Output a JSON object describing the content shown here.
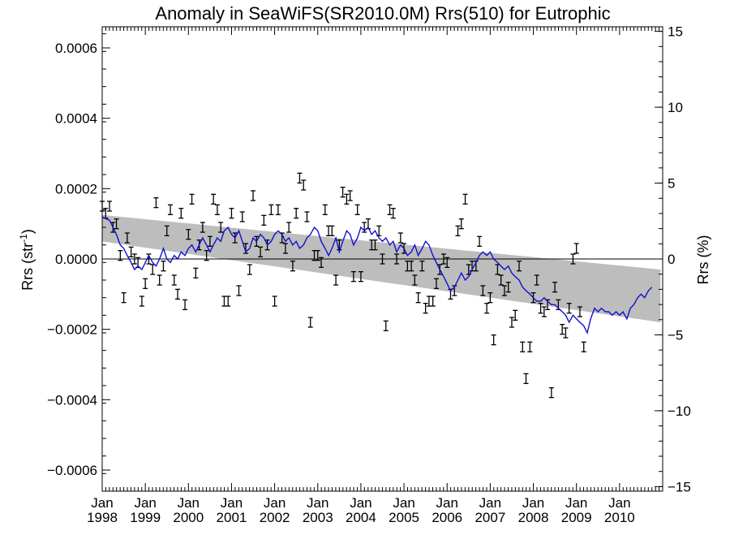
{
  "chart_data": {
    "type": "scatter",
    "title": "Anomaly in SeaWiFS(SR2010.0M) Rrs(510) for Eutrophic",
    "ylabel_left_main": "Rrs (str",
    "ylabel_left_sup": "-1",
    "ylabel_left_end": ")",
    "ylabel_right": "Rrs (%)",
    "x_range": [
      "1998-01",
      "2010-12"
    ],
    "ylim_left": [
      -0.00066,
      0.00066
    ],
    "ylim_right": [
      -15.3,
      15.3
    ],
    "left_ticks": [
      {
        "value": 0.0006,
        "label": "0.0006"
      },
      {
        "value": 0.0004,
        "label": "0.0004"
      },
      {
        "value": 0.0002,
        "label": "0.0002"
      },
      {
        "value": 0.0,
        "label": "0.0000"
      },
      {
        "value": -0.0002,
        "label": "−0.0002"
      },
      {
        "value": -0.0004,
        "label": "−0.0004"
      },
      {
        "value": -0.0006,
        "label": "−0.0006"
      }
    ],
    "right_ticks": [
      {
        "value": 15,
        "label": "15"
      },
      {
        "value": 10,
        "label": "10"
      },
      {
        "value": 5,
        "label": "5"
      },
      {
        "value": 0,
        "label": "0"
      },
      {
        "value": -5,
        "label": "−5"
      },
      {
        "value": -10,
        "label": "−10"
      },
      {
        "value": -15,
        "label": "−15"
      }
    ],
    "x_ticks": [
      {
        "month": "Jan",
        "year": "1998",
        "t": 0
      },
      {
        "month": "Jan",
        "year": "1999",
        "t": 1
      },
      {
        "month": "Jan",
        "year": "2000",
        "t": 2
      },
      {
        "month": "Jan",
        "year": "2001",
        "t": 3
      },
      {
        "month": "Jan",
        "year": "2002",
        "t": 4
      },
      {
        "month": "Jan",
        "year": "2003",
        "t": 5
      },
      {
        "month": "Jan",
        "year": "2004",
        "t": 6
      },
      {
        "month": "Jan",
        "year": "2005",
        "t": 7
      },
      {
        "month": "Jan",
        "year": "2006",
        "t": 8
      },
      {
        "month": "Jan",
        "year": "2007",
        "t": 9
      },
      {
        "month": "Jan",
        "year": "2008",
        "t": 10
      },
      {
        "month": "Jan",
        "year": "2009",
        "t": 11
      },
      {
        "month": "Jan",
        "year": "2010",
        "t": 12
      }
    ],
    "trend_band": {
      "upper": [
        [
          1998.0,
          0.000125
        ],
        [
          2010.95,
          -3e-05
        ]
      ],
      "lower": [
        [
          1998.0,
          5e-05
        ],
        [
          2010.95,
          -0.00018
        ]
      ]
    },
    "running_mean": [
      [
        1998.0,
        0.00012
      ],
      [
        1998.08,
        0.000115
      ],
      [
        1998.17,
        0.00011
      ],
      [
        1998.25,
        9e-05
      ],
      [
        1998.33,
        7e-05
      ],
      [
        1998.42,
        4e-05
      ],
      [
        1998.5,
        3e-05
      ],
      [
        1998.58,
        1e-05
      ],
      [
        1998.67,
        -1e-05
      ],
      [
        1998.75,
        -3e-05
      ],
      [
        1998.83,
        -2e-05
      ],
      [
        1998.92,
        -3e-05
      ],
      [
        1999.0,
        -1e-05
      ],
      [
        1999.08,
        1e-05
      ],
      [
        1999.17,
        -1e-05
      ],
      [
        1999.25,
        -2e-05
      ],
      [
        1999.33,
        0.0
      ],
      [
        1999.42,
        3e-05
      ],
      [
        1999.5,
        0.0
      ],
      [
        1999.58,
        -1e-05
      ],
      [
        1999.67,
        1e-05
      ],
      [
        1999.75,
        0.0
      ],
      [
        1999.83,
        2e-05
      ],
      [
        1999.92,
        1e-05
      ],
      [
        2000.0,
        3e-05
      ],
      [
        2000.08,
        4e-05
      ],
      [
        2000.17,
        2e-05
      ],
      [
        2000.25,
        4e-05
      ],
      [
        2000.33,
        6e-05
      ],
      [
        2000.42,
        4e-05
      ],
      [
        2000.5,
        2e-05
      ],
      [
        2000.58,
        4e-05
      ],
      [
        2000.67,
        6e-05
      ],
      [
        2000.75,
        5e-05
      ],
      [
        2000.83,
        8e-05
      ],
      [
        2000.92,
        9e-05
      ],
      [
        2001.0,
        7e-05
      ],
      [
        2001.08,
        6e-05
      ],
      [
        2001.17,
        8e-05
      ],
      [
        2001.25,
        5e-05
      ],
      [
        2001.33,
        2e-05
      ],
      [
        2001.42,
        3e-05
      ],
      [
        2001.5,
        6e-05
      ],
      [
        2001.58,
        5e-05
      ],
      [
        2001.67,
        7e-05
      ],
      [
        2001.75,
        6e-05
      ],
      [
        2001.83,
        4e-05
      ],
      [
        2001.92,
        5e-05
      ],
      [
        2002.0,
        7e-05
      ],
      [
        2002.08,
        8e-05
      ],
      [
        2002.17,
        7e-05
      ],
      [
        2002.25,
        5e-05
      ],
      [
        2002.33,
        6e-05
      ],
      [
        2002.42,
        4e-05
      ],
      [
        2002.5,
        5e-05
      ],
      [
        2002.58,
        3e-05
      ],
      [
        2002.67,
        4e-05
      ],
      [
        2002.75,
        6e-05
      ],
      [
        2002.83,
        7e-05
      ],
      [
        2002.92,
        9e-05
      ],
      [
        2003.0,
        8e-05
      ],
      [
        2003.08,
        5e-05
      ],
      [
        2003.17,
        3e-05
      ],
      [
        2003.25,
        1e-05
      ],
      [
        2003.33,
        3e-05
      ],
      [
        2003.42,
        6e-05
      ],
      [
        2003.5,
        2e-05
      ],
      [
        2003.58,
        5e-05
      ],
      [
        2003.67,
        8e-05
      ],
      [
        2003.75,
        7e-05
      ],
      [
        2003.83,
        4e-05
      ],
      [
        2003.92,
        6e-05
      ],
      [
        2004.0,
        9e-05
      ],
      [
        2004.08,
        8e-05
      ],
      [
        2004.17,
        9e-05
      ],
      [
        2004.25,
        7e-05
      ],
      [
        2004.33,
        8e-05
      ],
      [
        2004.42,
        6e-05
      ],
      [
        2004.5,
        5e-05
      ],
      [
        2004.58,
        6e-05
      ],
      [
        2004.67,
        4e-05
      ],
      [
        2004.75,
        5e-05
      ],
      [
        2004.83,
        2e-05
      ],
      [
        2004.92,
        4e-05
      ],
      [
        2005.0,
        3e-05
      ],
      [
        2005.08,
        1e-05
      ],
      [
        2005.17,
        2e-05
      ],
      [
        2005.25,
        4e-05
      ],
      [
        2005.33,
        1e-05
      ],
      [
        2005.42,
        3e-05
      ],
      [
        2005.5,
        5e-05
      ],
      [
        2005.58,
        4e-05
      ],
      [
        2005.67,
        1e-05
      ],
      [
        2005.75,
        -1e-05
      ],
      [
        2005.83,
        -3e-05
      ],
      [
        2005.92,
        -5e-05
      ],
      [
        2006.0,
        -7e-05
      ],
      [
        2006.08,
        -9e-05
      ],
      [
        2006.17,
        -8e-05
      ],
      [
        2006.25,
        -6e-05
      ],
      [
        2006.33,
        -4e-05
      ],
      [
        2006.42,
        -6e-05
      ],
      [
        2006.5,
        -5e-05
      ],
      [
        2006.58,
        -3e-05
      ],
      [
        2006.67,
        -1e-05
      ],
      [
        2006.75,
        1e-05
      ],
      [
        2006.83,
        2e-05
      ],
      [
        2006.92,
        1e-05
      ],
      [
        2007.0,
        2e-05
      ],
      [
        2007.08,
        0.0
      ],
      [
        2007.17,
        -1e-05
      ],
      [
        2007.25,
        -2e-05
      ],
      [
        2007.33,
        -3e-05
      ],
      [
        2007.42,
        -2e-05
      ],
      [
        2007.5,
        -4e-05
      ],
      [
        2007.58,
        -5e-05
      ],
      [
        2007.67,
        -6e-05
      ],
      [
        2007.75,
        -8e-05
      ],
      [
        2007.83,
        -9e-05
      ],
      [
        2007.92,
        -0.0001
      ],
      [
        2008.0,
        -0.00011
      ],
      [
        2008.08,
        -0.00012
      ],
      [
        2008.17,
        -0.00012
      ],
      [
        2008.25,
        -0.00011
      ],
      [
        2008.33,
        -0.00012
      ],
      [
        2008.42,
        -0.00013
      ],
      [
        2008.5,
        -0.00013
      ],
      [
        2008.58,
        -0.00014
      ],
      [
        2008.67,
        -0.00015
      ],
      [
        2008.75,
        -0.00016
      ],
      [
        2008.83,
        -0.00018
      ],
      [
        2008.92,
        -0.00016
      ],
      [
        2009.0,
        -0.00017
      ],
      [
        2009.08,
        -0.00018
      ],
      [
        2009.17,
        -0.00019
      ],
      [
        2009.25,
        -0.00021
      ],
      [
        2009.33,
        -0.00017
      ],
      [
        2009.42,
        -0.00014
      ],
      [
        2009.5,
        -0.00015
      ],
      [
        2009.58,
        -0.00014
      ],
      [
        2009.67,
        -0.00015
      ],
      [
        2009.75,
        -0.00015
      ],
      [
        2009.83,
        -0.00016
      ],
      [
        2009.92,
        -0.00015
      ],
      [
        2010.0,
        -0.00016
      ],
      [
        2010.08,
        -0.00015
      ],
      [
        2010.17,
        -0.00017
      ],
      [
        2010.25,
        -0.00014
      ],
      [
        2010.33,
        -0.00013
      ],
      [
        2010.42,
        -0.00011
      ],
      [
        2010.5,
        -0.0001
      ],
      [
        2010.58,
        -0.00011
      ],
      [
        2010.67,
        -9e-05
      ],
      [
        2010.75,
        -8e-05
      ]
    ],
    "monthly_points": [
      [
        1998.0,
        0.00015
      ],
      [
        1998.08,
        0.00013
      ],
      [
        1998.17,
        0.00015
      ],
      [
        1998.25,
        9e-05
      ],
      [
        1998.33,
        0.0001
      ],
      [
        1998.42,
        1e-05
      ],
      [
        1998.5,
        -0.00011
      ],
      [
        1998.58,
        6e-05
      ],
      [
        1998.67,
        2e-05
      ],
      [
        1998.75,
        0.0
      ],
      [
        1998.83,
        -1e-05
      ],
      [
        1998.92,
        -0.00012
      ],
      [
        1999.0,
        -7e-05
      ],
      [
        1999.08,
        0.0
      ],
      [
        1999.17,
        -3e-05
      ],
      [
        1999.25,
        0.00016
      ],
      [
        1999.33,
        -6e-05
      ],
      [
        1999.42,
        -2e-05
      ],
      [
        1999.5,
        8e-05
      ],
      [
        1999.58,
        0.00014
      ],
      [
        1999.67,
        -6e-05
      ],
      [
        1999.75,
        -0.0001
      ],
      [
        1999.83,
        0.00013
      ],
      [
        1999.92,
        -0.00013
      ],
      [
        2000.0,
        7e-05
      ],
      [
        2000.08,
        0.00017
      ],
      [
        2000.17,
        -4e-05
      ],
      [
        2000.25,
        4e-05
      ],
      [
        2000.33,
        9e-05
      ],
      [
        2000.42,
        1e-05
      ],
      [
        2000.5,
        5e-05
      ],
      [
        2000.58,
        0.00017
      ],
      [
        2000.67,
        0.00014
      ],
      [
        2000.75,
        9e-05
      ],
      [
        2000.83,
        -0.00012
      ],
      [
        2000.92,
        -0.00012
      ],
      [
        2001.0,
        0.00013
      ],
      [
        2001.08,
        6e-05
      ],
      [
        2001.17,
        -9e-05
      ],
      [
        2001.25,
        0.00012
      ],
      [
        2001.33,
        3e-05
      ],
      [
        2001.42,
        -3e-05
      ],
      [
        2001.5,
        0.00018
      ],
      [
        2001.58,
        5e-05
      ],
      [
        2001.67,
        2e-05
      ],
      [
        2001.75,
        0.00011
      ],
      [
        2001.83,
        4e-05
      ],
      [
        2001.92,
        0.00014
      ],
      [
        2002.0,
        -0.00012
      ],
      [
        2002.08,
        0.00014
      ],
      [
        2002.17,
        6e-05
      ],
      [
        2002.25,
        3e-05
      ],
      [
        2002.33,
        9e-05
      ],
      [
        2002.42,
        -2e-05
      ],
      [
        2002.5,
        0.00013
      ],
      [
        2002.58,
        0.00023
      ],
      [
        2002.67,
        0.00021
      ],
      [
        2002.75,
        0.00012
      ],
      [
        2002.83,
        -0.00018
      ],
      [
        2002.92,
        1e-05
      ],
      [
        2003.0,
        1e-05
      ],
      [
        2003.08,
        -1e-05
      ],
      [
        2003.17,
        0.00014
      ],
      [
        2003.25,
        8e-05
      ],
      [
        2003.33,
        8e-05
      ],
      [
        2003.42,
        -6e-05
      ],
      [
        2003.5,
        4e-05
      ],
      [
        2003.58,
        0.00019
      ],
      [
        2003.67,
        0.00017
      ],
      [
        2003.75,
        0.00018
      ],
      [
        2003.83,
        -5e-05
      ],
      [
        2003.92,
        0.00014
      ],
      [
        2004.0,
        -5e-05
      ],
      [
        2004.08,
        9e-05
      ],
      [
        2004.17,
        0.0001
      ],
      [
        2004.25,
        4e-05
      ],
      [
        2004.33,
        4e-05
      ],
      [
        2004.42,
        8e-05
      ],
      [
        2004.5,
        0.0
      ],
      [
        2004.58,
        -0.00019
      ],
      [
        2004.67,
        0.00014
      ],
      [
        2004.75,
        0.00013
      ],
      [
        2004.83,
        0.0
      ],
      [
        2004.92,
        6e-05
      ],
      [
        2005.0,
        3e-05
      ],
      [
        2005.08,
        -2e-05
      ],
      [
        2005.17,
        -2e-05
      ],
      [
        2005.25,
        -6e-05
      ],
      [
        2005.33,
        -0.00011
      ],
      [
        2005.42,
        -2e-05
      ],
      [
        2005.5,
        -0.00014
      ],
      [
        2005.58,
        -0.00012
      ],
      [
        2005.67,
        -0.00012
      ],
      [
        2005.75,
        -7e-05
      ],
      [
        2005.83,
        -3e-05
      ],
      [
        2005.92,
        0.0
      ],
      [
        2006.0,
        -1e-05
      ],
      [
        2006.08,
        -0.0001
      ],
      [
        2006.17,
        -9e-05
      ],
      [
        2006.25,
        8e-05
      ],
      [
        2006.33,
        0.0001
      ],
      [
        2006.42,
        0.00017
      ],
      [
        2006.5,
        -3e-05
      ],
      [
        2006.58,
        -2e-05
      ],
      [
        2006.67,
        -2e-05
      ],
      [
        2006.75,
        5e-05
      ],
      [
        2006.83,
        -9e-05
      ],
      [
        2006.92,
        -0.00014
      ],
      [
        2007.0,
        -0.00011
      ],
      [
        2007.08,
        -0.00023
      ],
      [
        2007.17,
        -3e-05
      ],
      [
        2007.25,
        -6e-05
      ],
      [
        2007.33,
        -9e-05
      ],
      [
        2007.42,
        -8e-05
      ],
      [
        2007.5,
        -0.00018
      ],
      [
        2007.58,
        -0.00016
      ],
      [
        2007.67,
        -2e-05
      ],
      [
        2007.75,
        -0.00025
      ],
      [
        2007.83,
        -0.00034
      ],
      [
        2007.92,
        -0.00025
      ],
      [
        2008.0,
        -0.00011
      ],
      [
        2008.08,
        -6e-05
      ],
      [
        2008.17,
        -0.00014
      ],
      [
        2008.25,
        -0.00015
      ],
      [
        2008.33,
        -0.00013
      ],
      [
        2008.42,
        -0.00038
      ],
      [
        2008.5,
        -8e-05
      ],
      [
        2008.58,
        -0.00013
      ],
      [
        2008.67,
        -0.0002
      ],
      [
        2008.75,
        -0.00021
      ],
      [
        2008.83,
        -0.00014
      ],
      [
        2008.92,
        0.0
      ],
      [
        2009.0,
        3e-05
      ],
      [
        2009.08,
        -0.00015
      ],
      [
        2009.17,
        -0.00025
      ]
    ]
  }
}
